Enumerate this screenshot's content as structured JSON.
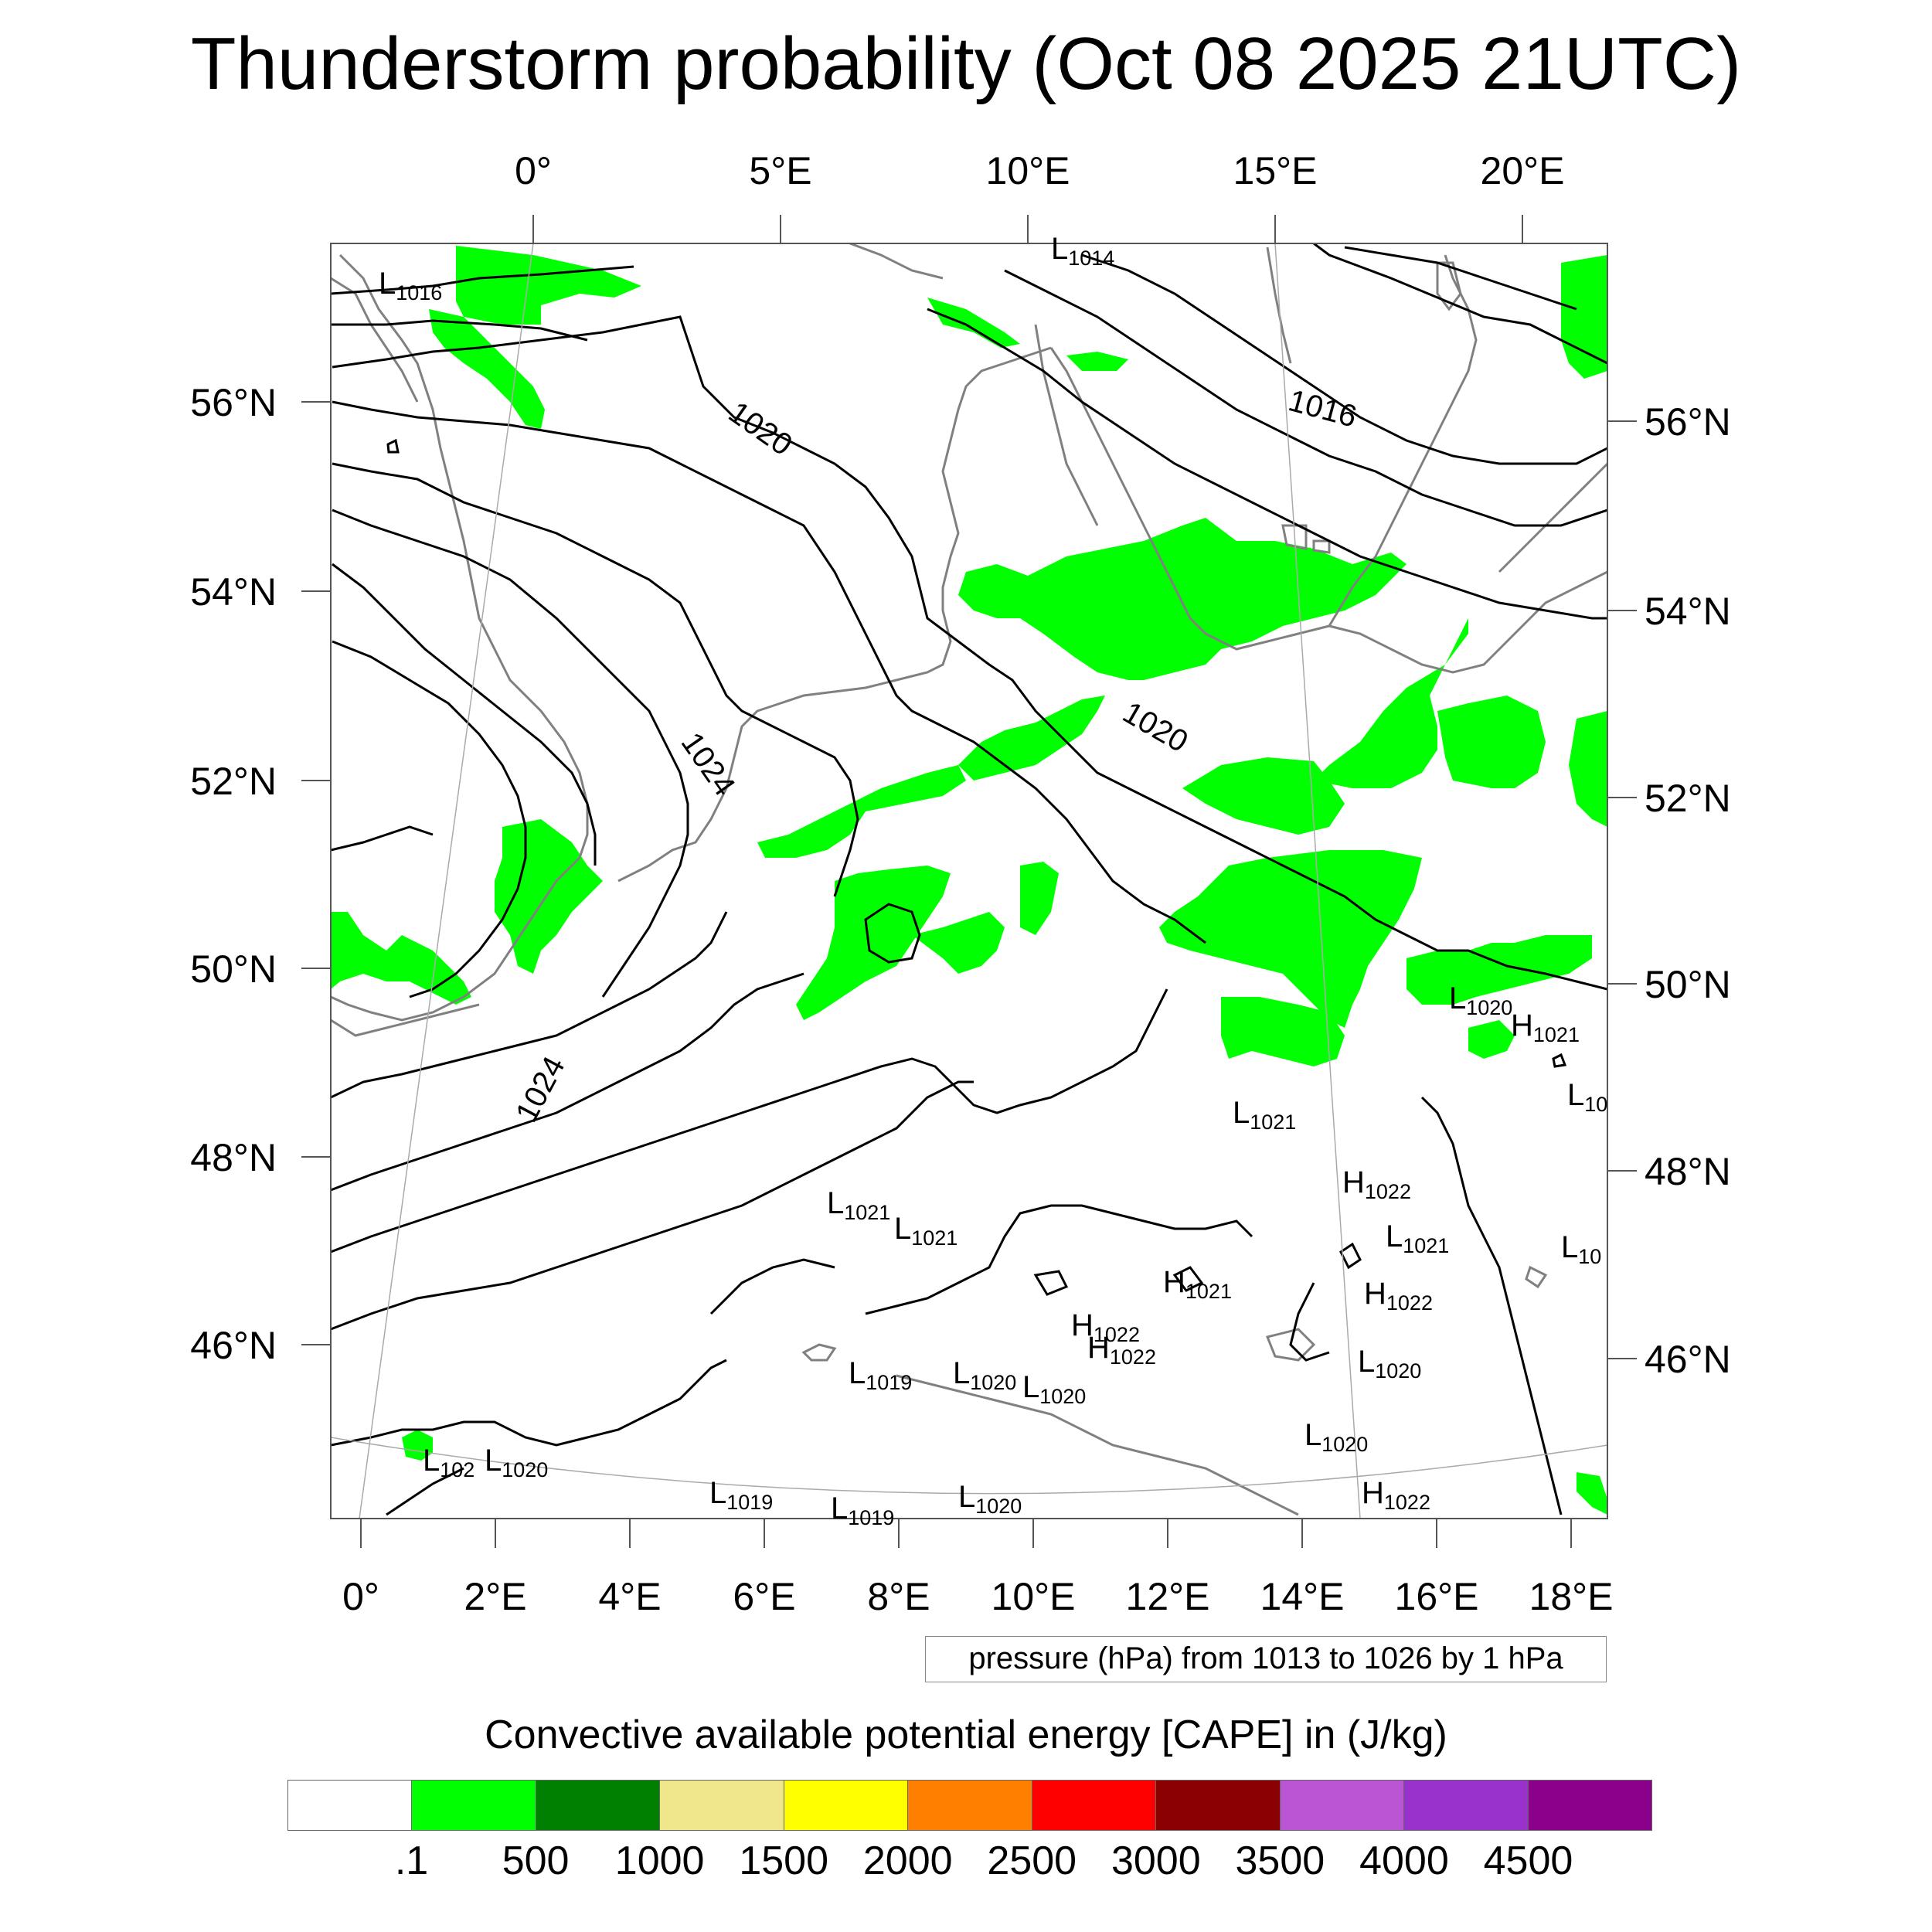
{
  "title": "Thunderstorm probability (Oct 08 2025 21UTC)",
  "top_axis_labels": [
    "0°",
    "5°E",
    "10°E",
    "15°E",
    "20°E"
  ],
  "bottom_axis_labels": [
    "0°",
    "2°E",
    "4°E",
    "6°E",
    "8°E",
    "10°E",
    "12°E",
    "14°E",
    "16°E",
    "18°E"
  ],
  "left_axis_labels": [
    "56°N",
    "54°N",
    "52°N",
    "50°N",
    "48°N",
    "46°N"
  ],
  "right_axis_labels": [
    "56°N",
    "54°N",
    "52°N",
    "50°N",
    "48°N",
    "46°N"
  ],
  "isobar_labels": [
    "1020",
    "1016",
    "1024",
    "1020",
    "1024"
  ],
  "pressure_centers": [
    {
      "type": "L",
      "value": "1016"
    },
    {
      "type": "L",
      "value": "1014"
    },
    {
      "type": "L",
      "value": "1020"
    },
    {
      "type": "H",
      "value": "1021"
    },
    {
      "type": "L",
      "value": "10"
    },
    {
      "type": "L",
      "value": "1021"
    },
    {
      "type": "H",
      "value": "1022"
    },
    {
      "type": "L",
      "value": "1021"
    },
    {
      "type": "L",
      "value": "1021"
    },
    {
      "type": "L",
      "value": "1021"
    },
    {
      "type": "L",
      "value": "10"
    },
    {
      "type": "H",
      "value": "1021"
    },
    {
      "type": "H",
      "value": "1022"
    },
    {
      "type": "H",
      "value": "1022"
    },
    {
      "type": "L",
      "value": "1020"
    },
    {
      "type": "L",
      "value": "1019"
    },
    {
      "type": "L",
      "value": "1020"
    },
    {
      "type": "L",
      "value": "1020"
    },
    {
      "type": "H",
      "value": "1022"
    },
    {
      "type": "L",
      "value": "1020"
    },
    {
      "type": "L",
      "value": "102"
    },
    {
      "type": "L",
      "value": "1020"
    },
    {
      "type": "L",
      "value": "1019"
    },
    {
      "type": "L",
      "value": "1019"
    },
    {
      "type": "L",
      "value": "1020"
    },
    {
      "type": "H",
      "value": "1022"
    }
  ],
  "pressure_note": "pressure (hPa) from 1013 to 1026 by 1 hPa",
  "colorbar": {
    "title": "Convective available potential energy [CAPE] in (J/kg)",
    "colors": [
      "#ffffff",
      "#00ff00",
      "#008000",
      "#f0e68c",
      "#ffff00",
      "#ff8000",
      "#ff0000",
      "#8b0000",
      "#ba55d3",
      "#9932cc",
      "#8b008b"
    ],
    "labels": [
      ".1",
      "500",
      "1000",
      "1500",
      "2000",
      "2500",
      "3000",
      "3500",
      "4000",
      "4500"
    ]
  },
  "colors": {
    "cape_green": "#00ff00",
    "coastline": "#808080",
    "isobar": "#000000"
  }
}
